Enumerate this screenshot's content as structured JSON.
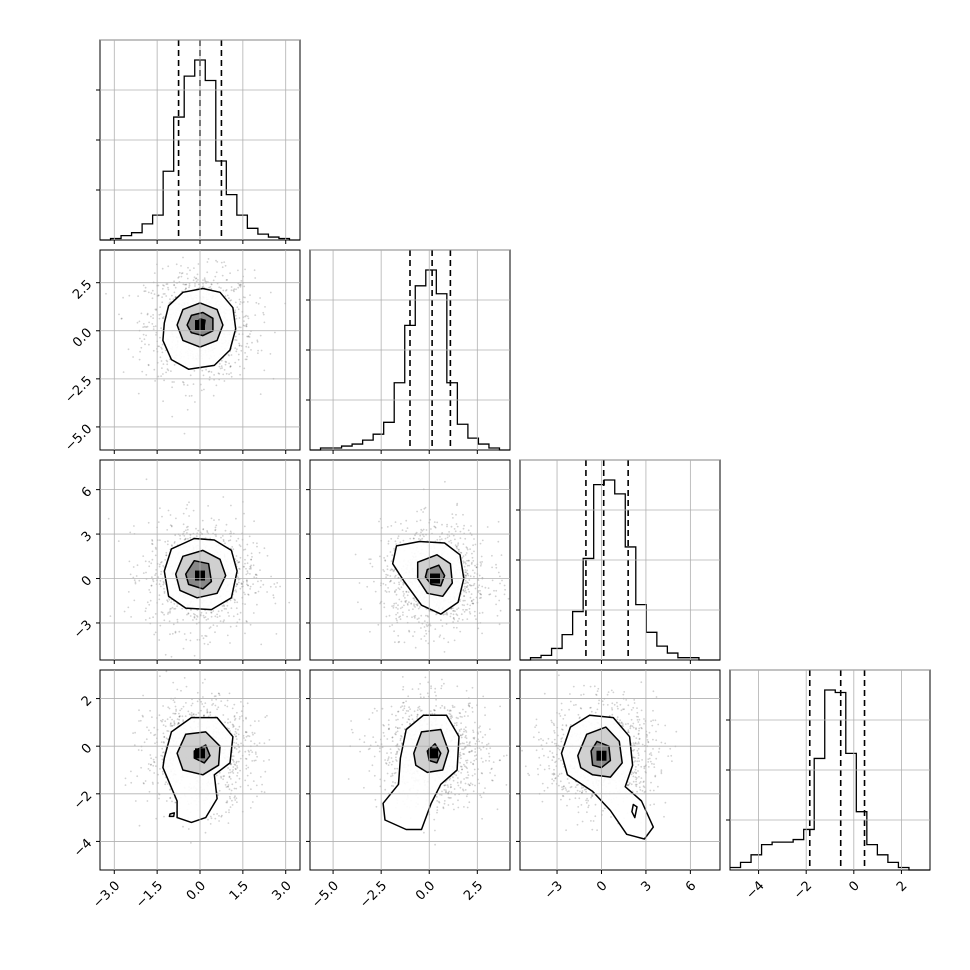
{
  "chart_data": {
    "type": "corner",
    "grid": true,
    "parameters": [
      {
        "range": [
          -3.5,
          3.5
        ],
        "ticks": [
          -3.0,
          -1.5,
          0.0,
          1.5,
          3.0
        ],
        "tick_labels": [
          "−3.0",
          "−1.5",
          "0.0",
          "1.5",
          "3.0"
        ],
        "quantiles": [
          -0.75,
          0.0,
          0.75
        ]
      },
      {
        "range": [
          -6.2,
          4.2
        ],
        "ticks": [
          -5.0,
          -2.5,
          0.0,
          2.5
        ],
        "tick_labels": [
          "−5.0",
          "−2.5",
          "0.0",
          "2.5"
        ],
        "quantiles": [
          -1.0,
          0.15,
          1.1
        ]
      },
      {
        "range": [
          -5.5,
          8.0
        ],
        "ticks": [
          -3,
          0,
          3,
          6
        ],
        "tick_labels": [
          "−3",
          "0",
          "3",
          "6"
        ],
        "quantiles": [
          -1.05,
          0.15,
          1.8
        ]
      },
      {
        "range": [
          -5.2,
          3.2
        ],
        "ticks": [
          -4,
          -2,
          0,
          2
        ],
        "tick_labels": [
          "−4",
          "−2",
          "0",
          "2"
        ],
        "quantiles": [
          -1.85,
          -0.55,
          0.45
        ]
      }
    ],
    "histograms": [
      {
        "values": [
          0,
          1,
          3,
          5,
          11,
          17,
          47,
          84,
          112,
          123,
          109,
          54,
          31,
          17,
          8,
          4,
          2,
          1,
          0
        ]
      },
      {
        "values": [
          0,
          1,
          1,
          2,
          3,
          5,
          8,
          14,
          34,
          63,
          83,
          91,
          79,
          34,
          13,
          6,
          3,
          1,
          0
        ]
      },
      {
        "values": [
          0,
          1,
          2,
          5,
          11,
          21,
          44,
          76,
          78,
          72,
          49,
          24,
          12,
          6,
          3,
          1,
          1,
          0,
          0
        ]
      },
      {
        "values": [
          1,
          3,
          6,
          10,
          11,
          11,
          12,
          16,
          44,
          71,
          70,
          46,
          23,
          10,
          6,
          3,
          1,
          0,
          0
        ]
      }
    ],
    "pairs": [
      {
        "x": 0,
        "y": 1,
        "center": [
          0.0,
          0.3
        ],
        "contours": [
          [
            [
              -1.25,
              0.4
            ],
            [
              -1.1,
              1.3
            ],
            [
              -0.6,
              2.0
            ],
            [
              0.1,
              2.2
            ],
            [
              0.7,
              2.0
            ],
            [
              1.15,
              1.2
            ],
            [
              1.25,
              0.1
            ],
            [
              1.05,
              -1.0
            ],
            [
              0.5,
              -1.8
            ],
            [
              -0.4,
              -2.0
            ],
            [
              -1.0,
              -1.5
            ],
            [
              -1.3,
              -0.5
            ]
          ],
          [
            [
              -0.8,
              0.3
            ],
            [
              -0.6,
              1.1
            ],
            [
              0.0,
              1.45
            ],
            [
              0.6,
              1.1
            ],
            [
              0.8,
              0.3
            ],
            [
              0.6,
              -0.5
            ],
            [
              0.0,
              -0.85
            ],
            [
              -0.6,
              -0.5
            ]
          ],
          [
            [
              -0.45,
              0.3
            ],
            [
              -0.3,
              0.8
            ],
            [
              0.1,
              0.95
            ],
            [
              0.45,
              0.65
            ],
            [
              0.45,
              0.0
            ],
            [
              0.1,
              -0.25
            ],
            [
              -0.3,
              -0.1
            ]
          ],
          [
            [
              -0.1,
              0.4
            ],
            [
              0.0,
              0.62
            ],
            [
              0.18,
              0.55
            ],
            [
              0.15,
              0.3
            ],
            [
              -0.02,
              0.25
            ]
          ]
        ]
      },
      {
        "x": 0,
        "y": 2,
        "center": [
          0.0,
          0.2
        ],
        "contours": [
          [
            [
              -1.25,
              0.5
            ],
            [
              -1.0,
              2.0
            ],
            [
              -0.2,
              2.7
            ],
            [
              0.5,
              2.6
            ],
            [
              1.1,
              1.9
            ],
            [
              1.3,
              0.5
            ],
            [
              1.1,
              -1.3
            ],
            [
              0.4,
              -2.1
            ],
            [
              -0.5,
              -2.0
            ],
            [
              -1.1,
              -1.2
            ]
          ],
          [
            [
              -0.85,
              0.3
            ],
            [
              -0.6,
              1.5
            ],
            [
              0.1,
              1.9
            ],
            [
              0.7,
              1.3
            ],
            [
              0.9,
              0.2
            ],
            [
              0.6,
              -1.0
            ],
            [
              -0.1,
              -1.3
            ],
            [
              -0.7,
              -0.8
            ]
          ],
          [
            [
              -0.5,
              0.3
            ],
            [
              -0.2,
              1.2
            ],
            [
              0.3,
              1.0
            ],
            [
              0.4,
              -0.2
            ],
            [
              0.1,
              -0.7
            ],
            [
              -0.4,
              -0.4
            ]
          ]
        ]
      },
      {
        "x": 1,
        "y": 2,
        "center": [
          0.3,
          0.0
        ],
        "contours": [
          [
            [
              -1.7,
              2.2
            ],
            [
              -0.5,
              2.5
            ],
            [
              0.8,
              2.4
            ],
            [
              1.6,
              1.6
            ],
            [
              1.8,
              0.0
            ],
            [
              1.5,
              -1.6
            ],
            [
              0.6,
              -2.4
            ],
            [
              -0.4,
              -1.8
            ],
            [
              -1.3,
              -0.2
            ],
            [
              -1.9,
              1.0
            ]
          ],
          [
            [
              -0.6,
              1.1
            ],
            [
              0.4,
              1.6
            ],
            [
              1.1,
              1.0
            ],
            [
              1.2,
              -0.3
            ],
            [
              0.7,
              -1.2
            ],
            [
              -0.1,
              -1.0
            ],
            [
              -0.6,
              0.0
            ]
          ],
          [
            [
              -0.1,
              0.6
            ],
            [
              0.5,
              0.9
            ],
            [
              0.8,
              0.2
            ],
            [
              0.6,
              -0.5
            ],
            [
              0.1,
              -0.4
            ],
            [
              -0.2,
              0.1
            ]
          ]
        ]
      },
      {
        "x": 0,
        "y": 3,
        "center": [
          0.0,
          -0.3
        ],
        "contours": [
          [
            [
              -1.25,
              -0.5
            ],
            [
              -1.0,
              0.6
            ],
            [
              -0.3,
              1.2
            ],
            [
              0.6,
              1.2
            ],
            [
              1.15,
              0.4
            ],
            [
              1.05,
              -0.7
            ],
            [
              0.5,
              -1.2
            ],
            [
              0.6,
              -2.2
            ],
            [
              0.2,
              -3.0
            ],
            [
              -0.3,
              -3.2
            ],
            [
              -0.8,
              -3.0
            ],
            [
              -0.8,
              -2.3
            ],
            [
              -1.05,
              -1.6
            ],
            [
              -1.3,
              -0.9
            ]
          ],
          [
            [
              -0.8,
              -0.3
            ],
            [
              -0.5,
              0.5
            ],
            [
              0.2,
              0.6
            ],
            [
              0.7,
              0.0
            ],
            [
              0.65,
              -0.8
            ],
            [
              0.1,
              -1.2
            ],
            [
              -0.6,
              -1.0
            ]
          ],
          [
            [
              -0.2,
              -0.2
            ],
            [
              0.2,
              0.05
            ],
            [
              0.35,
              -0.4
            ],
            [
              0.15,
              -0.7
            ],
            [
              -0.2,
              -0.5
            ]
          ],
          [
            [
              -1.05,
              -2.85
            ],
            [
              -0.9,
              -2.8
            ],
            [
              -0.92,
              -2.95
            ],
            [
              -1.07,
              -2.95
            ]
          ]
        ]
      },
      {
        "x": 1,
        "y": 3,
        "center": [
          0.2,
          -0.3
        ],
        "contours": [
          [
            [
              -1.5,
              -0.5
            ],
            [
              -1.2,
              0.7
            ],
            [
              -0.3,
              1.3
            ],
            [
              0.9,
              1.3
            ],
            [
              1.55,
              0.4
            ],
            [
              1.45,
              -1.0
            ],
            [
              0.6,
              -1.6
            ],
            [
              0.1,
              -2.4
            ],
            [
              -0.4,
              -3.5
            ],
            [
              -1.2,
              -3.5
            ],
            [
              -2.3,
              -3.1
            ],
            [
              -2.4,
              -2.4
            ],
            [
              -1.6,
              -1.6
            ]
          ],
          [
            [
              -0.8,
              -0.3
            ],
            [
              -0.4,
              0.6
            ],
            [
              0.6,
              0.7
            ],
            [
              1.0,
              -0.2
            ],
            [
              0.7,
              -1.0
            ],
            [
              -0.1,
              -1.1
            ],
            [
              -0.7,
              -0.8
            ]
          ],
          [
            [
              -0.1,
              -0.2
            ],
            [
              0.3,
              0.1
            ],
            [
              0.6,
              -0.3
            ],
            [
              0.4,
              -0.7
            ],
            [
              0.0,
              -0.6
            ]
          ]
        ]
      },
      {
        "x": 2,
        "y": 3,
        "center": [
          0.0,
          -0.4
        ],
        "contours": [
          [
            [
              -2.7,
              -0.3
            ],
            [
              -2.1,
              0.8
            ],
            [
              -0.8,
              1.3
            ],
            [
              0.8,
              1.2
            ],
            [
              1.9,
              0.4
            ],
            [
              2.1,
              -0.8
            ],
            [
              1.6,
              -1.7
            ],
            [
              2.7,
              -2.3
            ],
            [
              3.5,
              -3.4
            ],
            [
              2.9,
              -3.9
            ],
            [
              1.7,
              -3.7
            ],
            [
              0.6,
              -2.7
            ],
            [
              -0.6,
              -1.9
            ],
            [
              -2.3,
              -1.2
            ]
          ],
          [
            [
              -1.6,
              -0.4
            ],
            [
              -1.0,
              0.5
            ],
            [
              0.3,
              0.8
            ],
            [
              1.2,
              0.2
            ],
            [
              1.4,
              -0.7
            ],
            [
              0.6,
              -1.3
            ],
            [
              -0.6,
              -1.2
            ],
            [
              -1.4,
              -0.9
            ]
          ],
          [
            [
              -0.7,
              -0.2
            ],
            [
              -0.3,
              0.2
            ],
            [
              0.5,
              0.0
            ],
            [
              0.6,
              -0.6
            ],
            [
              0.0,
              -0.9
            ],
            [
              -0.6,
              -0.8
            ]
          ],
          [
            [
              2.15,
              -2.45
            ],
            [
              2.4,
              -2.55
            ],
            [
              2.25,
              -3.0
            ],
            [
              2.05,
              -2.75
            ]
          ]
        ]
      }
    ]
  }
}
